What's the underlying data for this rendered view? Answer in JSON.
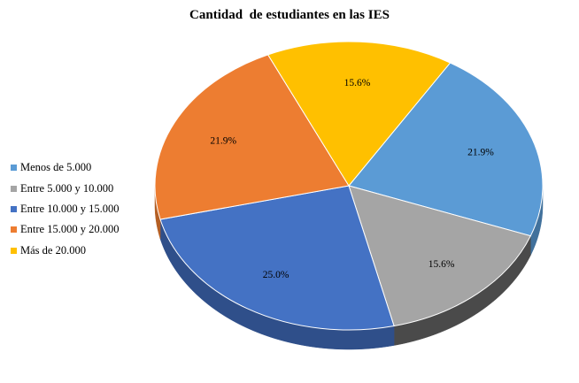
{
  "chart_data": {
    "type": "pie",
    "title": "Cantidad  de estudiantes en las IES",
    "legend_position": "left",
    "three_d": true,
    "slices": [
      {
        "label": "Menos de 5.000",
        "value": 21.9,
        "display": "21.9%",
        "color": "#5B9BD5",
        "side_color": "#41719C"
      },
      {
        "label": "Entre 5.000 y 10.000",
        "value": 15.6,
        "display": "15.6%",
        "color": "#A5A5A5",
        "side_color": "#4A4A4A"
      },
      {
        "label": "Entre 10.000 y 15.000",
        "value": 25.0,
        "display": "25.0%",
        "color": "#4472C4",
        "side_color": "#2F4F8A"
      },
      {
        "label": "Entre 15.000 y 20.000",
        "value": 21.9,
        "display": "21.9%",
        "color": "#ED7D31",
        "side_color": "#B45F24"
      },
      {
        "label": "Más de 20.000",
        "value": 15.6,
        "display": "15.6%",
        "color": "#FFC000",
        "side_color": "#B38600"
      }
    ]
  }
}
